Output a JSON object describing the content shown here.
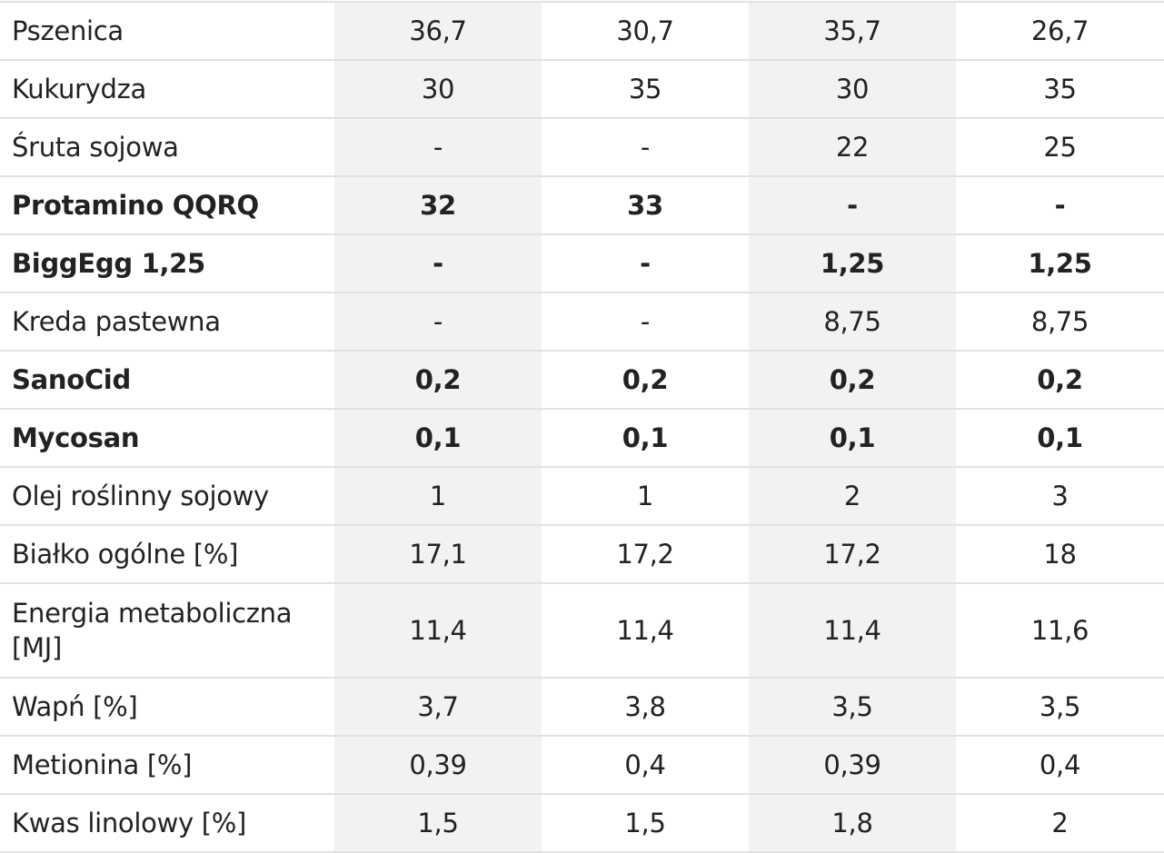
{
  "rows": [
    {
      "label": "Pszenica",
      "values": [
        "36,7",
        "30,7",
        "35,7",
        "26,7"
      ],
      "bold": false
    },
    {
      "label": "Kukurydza",
      "values": [
        "30",
        "35",
        "30",
        "35"
      ],
      "bold": false
    },
    {
      "label": "Śruta sojowa",
      "values": [
        "-",
        "-",
        "22",
        "25"
      ],
      "bold": false
    },
    {
      "label": "Protamino QQRQ",
      "values": [
        "32",
        "33",
        "-",
        "-"
      ],
      "bold": true
    },
    {
      "label": "BiggEgg 1,25",
      "values": [
        "-",
        "-",
        "1,25",
        "1,25"
      ],
      "bold": true
    },
    {
      "label": "Kreda pastewna",
      "values": [
        "-",
        "-",
        "8,75",
        "8,75"
      ],
      "bold": false
    },
    {
      "label": "SanoCid",
      "values": [
        "0,2",
        "0,2",
        "0,2",
        "0,2"
      ],
      "bold": true
    },
    {
      "label": "Mycosan",
      "values": [
        "0,1",
        "0,1",
        "0,1",
        "0,1"
      ],
      "bold": true
    },
    {
      "label": "Olej roślinny sojowy",
      "values": [
        "1",
        "1",
        "2",
        "3"
      ],
      "bold": false
    },
    {
      "label": "Białko ogólne [%]",
      "values": [
        "17,1",
        "17,2",
        "17,2",
        "18"
      ],
      "bold": false
    },
    {
      "label": "Energia metaboliczna [MJ]",
      "values": [
        "11,4",
        "11,4",
        "11,4",
        "11,6"
      ],
      "bold": false
    },
    {
      "label": "Wapń [%]",
      "values": [
        "3,7",
        "3,8",
        "3,5",
        "3,5"
      ],
      "bold": false
    },
    {
      "label": "Metionina [%]",
      "values": [
        "0,39",
        "0,4",
        "0,39",
        "0,4"
      ],
      "bold": false
    },
    {
      "label": "Kwas linolowy [%]",
      "values": [
        "1,5",
        "1,5",
        "1,8",
        "2"
      ],
      "bold": false
    }
  ]
}
